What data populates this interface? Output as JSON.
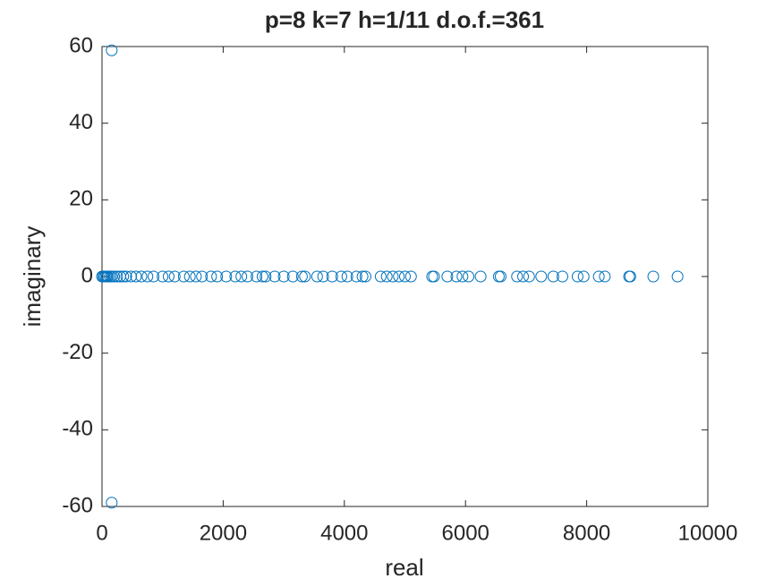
{
  "chart_data": {
    "type": "scatter",
    "title": "p=8 k=7 h=1/11 d.o.f.=361",
    "x_label": "real",
    "y_label": "imaginary",
    "series": [
      {
        "color": "#0072bd",
        "x": [
          160,
          160,
          0,
          20,
          40,
          60,
          80,
          100,
          130,
          160,
          200,
          250,
          300,
          350,
          400,
          480,
          560,
          650,
          750,
          850,
          1000,
          1100,
          1200,
          1350,
          1450,
          1550,
          1650,
          1800,
          1900,
          2050,
          2200,
          2300,
          2400,
          2550,
          2650,
          2700,
          2850,
          3000,
          3150,
          3300,
          3350,
          3550,
          3650,
          3800,
          3950,
          4050,
          4200,
          4300,
          4350,
          4600,
          4700,
          4800,
          4900,
          5000,
          5100,
          5450,
          5480,
          5700,
          5850,
          5950,
          6050,
          6250,
          6550,
          6580,
          6850,
          6950,
          7050,
          7250,
          7450,
          7600,
          7850,
          7950,
          8200,
          8300,
          8700,
          8720,
          9100,
          9500
        ],
        "y": [
          59,
          -59,
          0,
          0,
          0,
          0,
          0,
          0,
          0,
          0,
          0,
          0,
          0,
          0,
          0,
          0,
          0,
          0,
          0,
          0,
          0,
          0,
          0,
          0,
          0,
          0,
          0,
          0,
          0,
          0,
          0,
          0,
          0,
          0,
          0,
          0,
          0,
          0,
          0,
          0,
          0,
          0,
          0,
          0,
          0,
          0,
          0,
          0,
          0,
          0,
          0,
          0,
          0,
          0,
          0,
          0,
          0,
          0,
          0,
          0,
          0,
          0,
          0,
          0,
          0,
          0,
          0,
          0,
          0,
          0,
          0,
          0,
          0,
          0,
          0,
          0,
          0,
          0
        ]
      }
    ],
    "xlim": [
      0,
      10000
    ],
    "xticks": [
      0,
      2000,
      4000,
      6000,
      8000,
      10000
    ],
    "ylim": [
      -60,
      60
    ],
    "yticks": [
      -60,
      -40,
      -20,
      0,
      20,
      40,
      60
    ],
    "grid": false
  }
}
